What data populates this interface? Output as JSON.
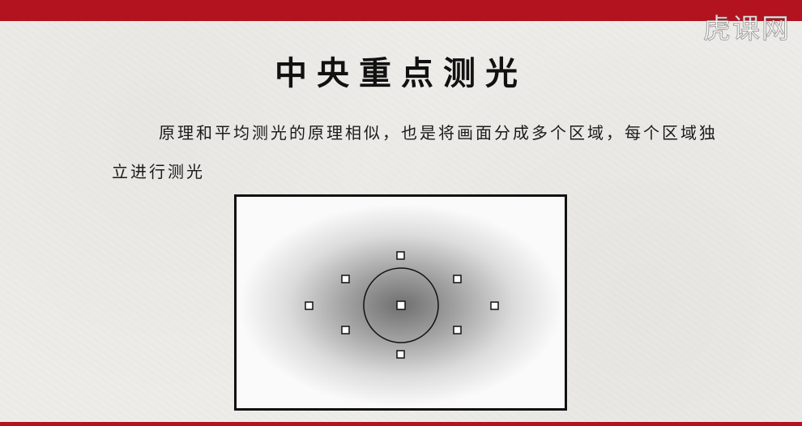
{
  "slide": {
    "watermark": "虎课网",
    "title": "中央重点测光",
    "paragraph": "原理和平均测光的原理相似，也是将画面分成多个区域，每个区域独立进行测光"
  },
  "colors": {
    "accent_red": "#b3121f",
    "paper": "#eeece8",
    "ink": "#111111"
  },
  "diagram": {
    "icons": [
      "metering-center-circle",
      "af-point-square"
    ]
  }
}
